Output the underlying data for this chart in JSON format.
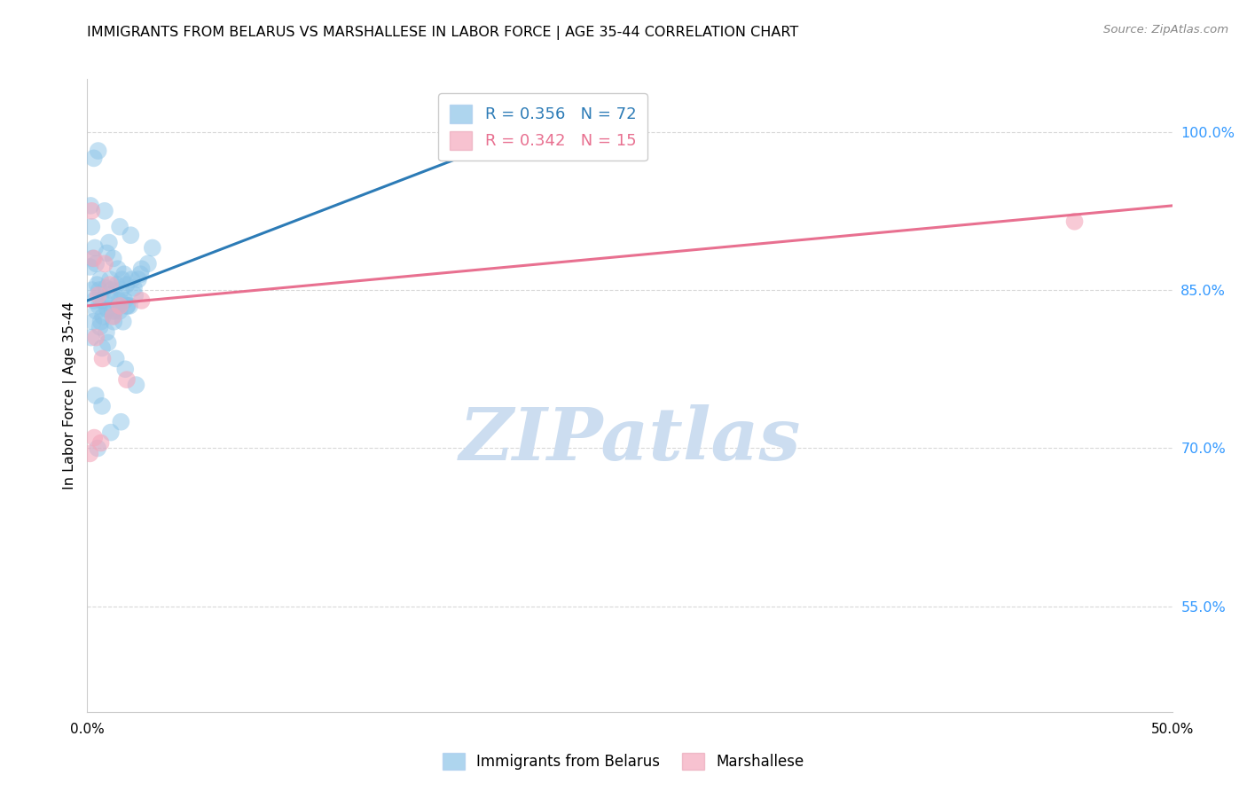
{
  "title": "IMMIGRANTS FROM BELARUS VS MARSHALLESE IN LABOR FORCE | AGE 35-44 CORRELATION CHART",
  "source": "Source: ZipAtlas.com",
  "ylabel": "In Labor Force | Age 35-44",
  "xlim": [
    0.0,
    50.0
  ],
  "ylim": [
    45.0,
    105.0
  ],
  "right_yticks": [
    100.0,
    85.0,
    70.0,
    55.0
  ],
  "right_yticklabels": [
    "100.0%",
    "85.0%",
    "70.0%",
    "55.0%"
  ],
  "xtick_vals": [
    0.0,
    10.0,
    20.0,
    30.0,
    40.0,
    50.0
  ],
  "xtick_labels": [
    "0.0%",
    "",
    "",
    "",
    "",
    "50.0%"
  ],
  "blue_color": "#8cc4e8",
  "pink_color": "#f4a8bc",
  "blue_line_color": "#2c7bb6",
  "pink_line_color": "#e87090",
  "watermark_text": "ZIPatlas",
  "watermark_color": "#ccddf0",
  "legend1_blue": "R = 0.356   N = 72",
  "legend1_pink": "R = 0.342   N = 15",
  "legend2_blue": "Immigrants from Belarus",
  "legend2_pink": "Marshallese",
  "grid_color": "#d8d8d8",
  "spine_color": "#cccccc",
  "right_tick_color": "#3399ff",
  "blue_scatter_x": [
    0.3,
    0.5,
    0.8,
    1.0,
    1.2,
    1.5,
    1.7,
    2.0,
    2.5,
    3.0,
    0.2,
    0.4,
    0.6,
    0.9,
    1.1,
    1.4,
    1.6,
    1.8,
    2.2,
    2.8,
    0.15,
    0.35,
    0.55,
    0.75,
    1.05,
    1.35,
    1.55,
    1.95,
    2.35,
    0.25,
    0.45,
    0.65,
    0.85,
    1.15,
    1.45,
    1.85,
    2.05,
    0.12,
    0.32,
    0.52,
    0.72,
    0.92,
    1.22,
    1.42,
    1.72,
    2.15,
    0.22,
    0.42,
    0.62,
    1.02,
    1.25,
    1.52,
    1.82,
    2.45,
    0.28,
    0.58,
    0.88,
    1.18,
    1.48,
    1.65,
    0.18,
    0.68,
    0.95,
    1.32,
    1.75,
    2.25,
    0.38,
    0.68,
    1.08,
    1.55,
    18.5,
    0.48
  ],
  "blue_scatter_y": [
    97.5,
    98.2,
    92.5,
    89.5,
    88.0,
    91.0,
    86.5,
    90.2,
    87.0,
    89.0,
    91.0,
    87.5,
    86.0,
    88.5,
    85.0,
    87.0,
    86.0,
    85.5,
    84.5,
    87.5,
    93.0,
    89.0,
    85.0,
    84.0,
    86.0,
    85.5,
    85.0,
    83.5,
    86.0,
    88.0,
    85.5,
    84.0,
    85.2,
    83.0,
    84.0,
    83.5,
    86.0,
    87.2,
    84.0,
    83.5,
    82.5,
    83.2,
    82.0,
    83.5,
    84.0,
    85.2,
    85.0,
    83.0,
    82.0,
    84.5,
    83.0,
    84.0,
    83.5,
    86.5,
    82.0,
    81.5,
    81.0,
    82.5,
    83.0,
    82.0,
    80.5,
    79.5,
    80.0,
    78.5,
    77.5,
    76.0,
    75.0,
    74.0,
    71.5,
    72.5,
    98.5,
    70.0
  ],
  "pink_scatter_x": [
    0.2,
    0.5,
    0.8,
    1.5,
    2.5,
    0.3,
    0.7,
    1.2,
    0.4,
    1.05,
    0.62,
    0.32,
    1.82,
    0.12,
    45.5
  ],
  "pink_scatter_y": [
    92.5,
    84.5,
    87.5,
    83.5,
    84.0,
    88.0,
    78.5,
    82.5,
    80.5,
    85.5,
    70.5,
    71.0,
    76.5,
    69.5,
    91.5
  ],
  "blue_line_x": [
    0.0,
    19.0
  ],
  "blue_line_y": [
    84.0,
    99.0
  ],
  "pink_line_x": [
    0.0,
    50.0
  ],
  "pink_line_y": [
    83.5,
    93.0
  ]
}
